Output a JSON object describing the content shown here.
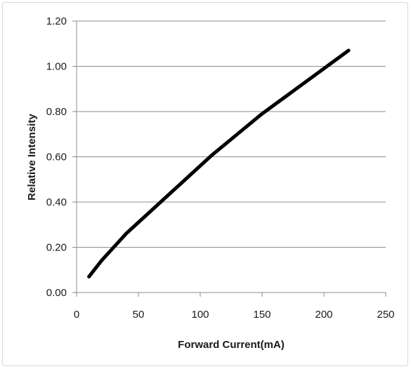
{
  "chart_data": {
    "type": "line",
    "title": "",
    "xlabel": "Forward Current(mA)",
    "ylabel": "Relative Intensity",
    "xlim": [
      0,
      250
    ],
    "ylim": [
      0,
      1.2
    ],
    "x_ticks": [
      "0",
      "50",
      "100",
      "150",
      "200",
      "250"
    ],
    "y_ticks": [
      "0.00",
      "0.20",
      "0.40",
      "0.60",
      "0.80",
      "1.00",
      "1.20"
    ],
    "grid": "horizontal",
    "legend": "none",
    "line_color": "#000000",
    "series": [
      {
        "x": [
          10,
          20,
          30,
          40,
          50,
          60,
          70,
          80,
          90,
          100,
          110,
          120,
          130,
          140,
          150,
          160,
          170,
          180,
          190,
          200,
          210,
          220
        ],
        "y": [
          0.07,
          0.14,
          0.2,
          0.26,
          0.31,
          0.36,
          0.41,
          0.46,
          0.51,
          0.56,
          0.61,
          0.655,
          0.7,
          0.745,
          0.79,
          0.83,
          0.87,
          0.91,
          0.95,
          0.99,
          1.03,
          1.07
        ]
      }
    ]
  }
}
